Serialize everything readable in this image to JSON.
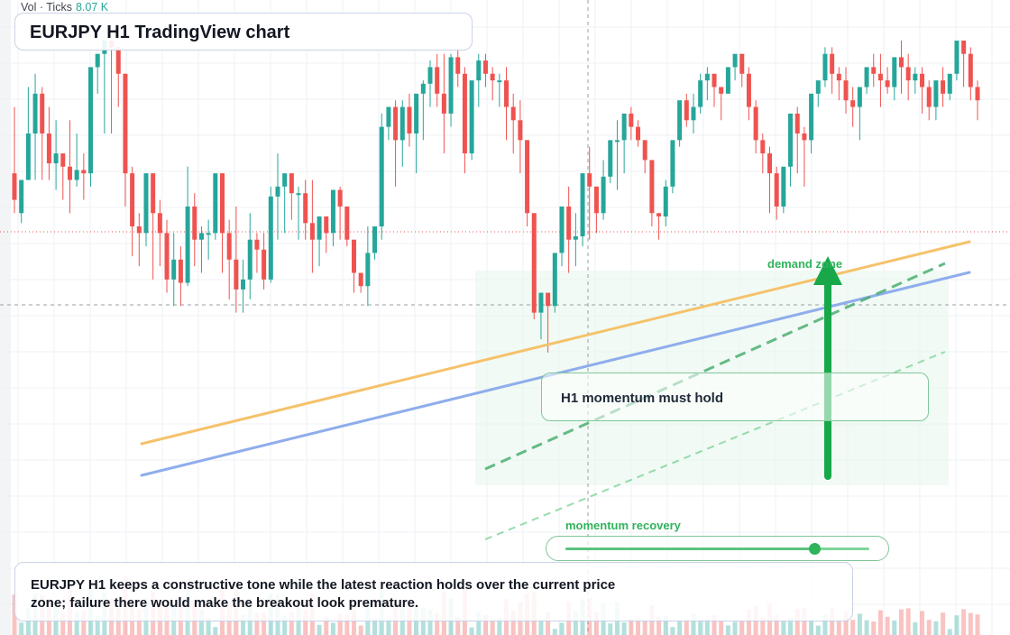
{
  "header": {
    "vol_label": "Vol · Ticks",
    "vol_value": "8.07 K",
    "title": "EURJPY H1 TradingView chart"
  },
  "annotations": {
    "zone_label": "demand zone",
    "note": "H1 momentum must hold",
    "momentum_label": "momentum recovery",
    "summary": "EURJPY H1 keeps a constructive tone while the latest reaction holds over the current price zone; failure there would make the breakout look premature."
  },
  "momentum_slider": {
    "value": 0.82
  },
  "colors": {
    "bull": "#26a69a",
    "bear": "#ef5350",
    "accent_green": "#2fb35b",
    "orange_line": "#f5c26b",
    "blue_line": "#8fadec"
  },
  "chart_data": {
    "type": "candlestick",
    "symbol": "EURJPY",
    "timeframe": "H1",
    "grid": true,
    "y_range": [
      0,
      100
    ],
    "candles": [
      [
        60,
        80,
        52,
        48
      ],
      [
        48,
        52,
        58,
        45
      ],
      [
        58,
        86,
        72,
        70
      ],
      [
        72,
        90,
        84,
        58
      ],
      [
        84,
        86,
        72,
        58
      ],
      [
        72,
        80,
        63,
        58
      ],
      [
        63,
        76,
        66,
        55
      ],
      [
        66,
        66,
        62,
        52
      ],
      [
        62,
        76,
        58,
        48
      ],
      [
        58,
        72,
        61,
        56
      ],
      [
        61,
        66,
        60,
        52
      ],
      [
        60,
        92,
        92,
        56
      ],
      [
        92,
        96,
        96,
        84
      ],
      [
        96,
        100,
        100,
        72
      ],
      [
        100,
        100,
        98,
        72
      ],
      [
        98,
        98,
        90,
        80
      ],
      [
        90,
        90,
        60,
        50
      ],
      [
        60,
        62,
        44,
        35
      ],
      [
        44,
        48,
        42,
        32
      ],
      [
        42,
        60,
        60,
        38
      ],
      [
        60,
        60,
        48,
        28
      ],
      [
        48,
        52,
        42,
        32
      ],
      [
        42,
        46,
        28,
        24
      ],
      [
        28,
        42,
        34,
        20
      ],
      [
        34,
        38,
        27,
        20
      ],
      [
        27,
        62,
        50,
        26
      ],
      [
        50,
        54,
        40,
        32
      ],
      [
        40,
        44,
        42,
        30
      ],
      [
        42,
        46,
        42,
        34
      ],
      [
        42,
        42,
        60,
        40
      ],
      [
        60,
        60,
        42,
        30
      ],
      [
        42,
        46,
        34,
        22
      ],
      [
        34,
        50,
        25,
        18
      ],
      [
        25,
        34,
        28,
        18
      ],
      [
        28,
        48,
        40,
        22
      ],
      [
        40,
        42,
        37,
        30
      ],
      [
        37,
        42,
        28,
        25
      ],
      [
        28,
        56,
        53,
        27
      ],
      [
        53,
        66,
        56,
        40
      ],
      [
        56,
        56,
        60,
        42
      ],
      [
        60,
        60,
        54,
        46
      ],
      [
        54,
        56,
        54,
        40
      ],
      [
        54,
        58,
        45,
        40
      ],
      [
        45,
        58,
        40,
        30
      ],
      [
        40,
        40,
        47,
        32
      ],
      [
        47,
        47,
        42,
        36
      ],
      [
        42,
        42,
        55,
        38
      ],
      [
        55,
        56,
        50,
        40
      ],
      [
        50,
        50,
        40,
        38
      ],
      [
        40,
        40,
        30,
        24
      ],
      [
        30,
        30,
        26,
        24
      ],
      [
        26,
        44,
        36,
        20
      ],
      [
        36,
        40,
        44,
        34
      ],
      [
        44,
        78,
        74,
        40
      ],
      [
        74,
        78,
        80,
        70
      ],
      [
        80,
        82,
        70,
        56
      ],
      [
        70,
        82,
        80,
        62
      ],
      [
        80,
        84,
        72,
        68
      ],
      [
        72,
        82,
        84,
        60
      ],
      [
        84,
        88,
        87,
        70
      ],
      [
        87,
        94,
        92,
        80
      ],
      [
        92,
        96,
        84,
        80
      ],
      [
        84,
        96,
        78,
        66
      ],
      [
        78,
        96,
        95,
        74
      ],
      [
        95,
        98,
        90,
        86
      ],
      [
        90,
        92,
        66,
        60
      ],
      [
        66,
        70,
        88,
        64
      ],
      [
        88,
        96,
        94,
        80
      ],
      [
        94,
        96,
        90,
        86
      ],
      [
        90,
        92,
        88,
        82
      ],
      [
        88,
        90,
        88,
        80
      ],
      [
        88,
        92,
        80,
        70
      ],
      [
        80,
        84,
        76,
        66
      ],
      [
        76,
        82,
        70,
        60
      ],
      [
        70,
        70,
        48,
        44
      ],
      [
        48,
        48,
        18,
        16
      ],
      [
        18,
        18,
        24,
        10
      ],
      [
        24,
        24,
        20,
        6
      ],
      [
        20,
        20,
        36,
        18
      ],
      [
        36,
        36,
        50,
        32
      ],
      [
        50,
        56,
        40,
        30
      ],
      [
        40,
        48,
        41,
        32
      ],
      [
        41,
        60,
        60,
        38
      ],
      [
        60,
        68,
        56,
        40
      ],
      [
        56,
        56,
        48,
        42
      ],
      [
        48,
        64,
        59,
        46
      ],
      [
        59,
        64,
        70,
        57
      ],
      [
        70,
        76,
        70,
        55
      ],
      [
        70,
        70,
        78,
        60
      ],
      [
        78,
        80,
        74,
        70
      ],
      [
        74,
        76,
        70,
        68
      ],
      [
        70,
        70,
        64,
        60
      ],
      [
        64,
        64,
        48,
        44
      ],
      [
        48,
        48,
        47,
        40
      ],
      [
        47,
        58,
        56,
        44
      ],
      [
        56,
        56,
        70,
        54
      ],
      [
        70,
        72,
        82,
        68
      ],
      [
        82,
        84,
        76,
        74
      ],
      [
        76,
        84,
        80,
        72
      ],
      [
        80,
        90,
        88,
        78
      ],
      [
        88,
        92,
        90,
        82
      ],
      [
        90,
        90,
        86,
        80
      ],
      [
        86,
        86,
        84,
        76
      ],
      [
        84,
        88,
        92,
        84
      ],
      [
        92,
        92,
        96,
        88
      ],
      [
        96,
        96,
        90,
        86
      ],
      [
        90,
        92,
        80,
        76
      ],
      [
        80,
        82,
        70,
        66
      ],
      [
        70,
        72,
        66,
        60
      ],
      [
        66,
        68,
        60,
        48
      ],
      [
        60,
        62,
        50,
        46
      ],
      [
        50,
        56,
        62,
        48
      ],
      [
        62,
        64,
        78,
        56
      ],
      [
        78,
        80,
        72,
        60
      ],
      [
        72,
        74,
        70,
        56
      ],
      [
        70,
        72,
        84,
        66
      ],
      [
        84,
        86,
        88,
        80
      ],
      [
        88,
        98,
        96,
        86
      ],
      [
        96,
        98,
        90,
        84
      ],
      [
        90,
        92,
        88,
        82
      ],
      [
        88,
        92,
        82,
        78
      ],
      [
        82,
        86,
        80,
        74
      ],
      [
        80,
        84,
        86,
        70
      ],
      [
        86,
        90,
        92,
        84
      ],
      [
        92,
        96,
        90,
        86
      ],
      [
        90,
        96,
        88,
        80
      ],
      [
        88,
        92,
        86,
        84
      ],
      [
        86,
        92,
        95,
        82
      ],
      [
        95,
        100,
        92,
        84
      ],
      [
        92,
        96,
        88,
        82
      ],
      [
        88,
        92,
        90,
        84
      ],
      [
        90,
        92,
        86,
        78
      ],
      [
        86,
        88,
        80,
        76
      ],
      [
        80,
        84,
        88,
        76
      ],
      [
        88,
        92,
        84,
        80
      ],
      [
        84,
        86,
        90,
        82
      ],
      [
        90,
        100,
        100,
        88
      ],
      [
        100,
        100,
        96,
        86
      ],
      [
        96,
        98,
        86,
        82
      ],
      [
        86,
        88,
        82,
        76
      ]
    ],
    "trend_lines": [
      {
        "name": "orange trendline",
        "from": [
          0.14,
          0.18
        ],
        "to": [
          0.97,
          0.62
        ]
      },
      {
        "name": "blue trendline",
        "from": [
          0.14,
          0.12
        ],
        "to": [
          0.97,
          0.56
        ]
      }
    ]
  }
}
